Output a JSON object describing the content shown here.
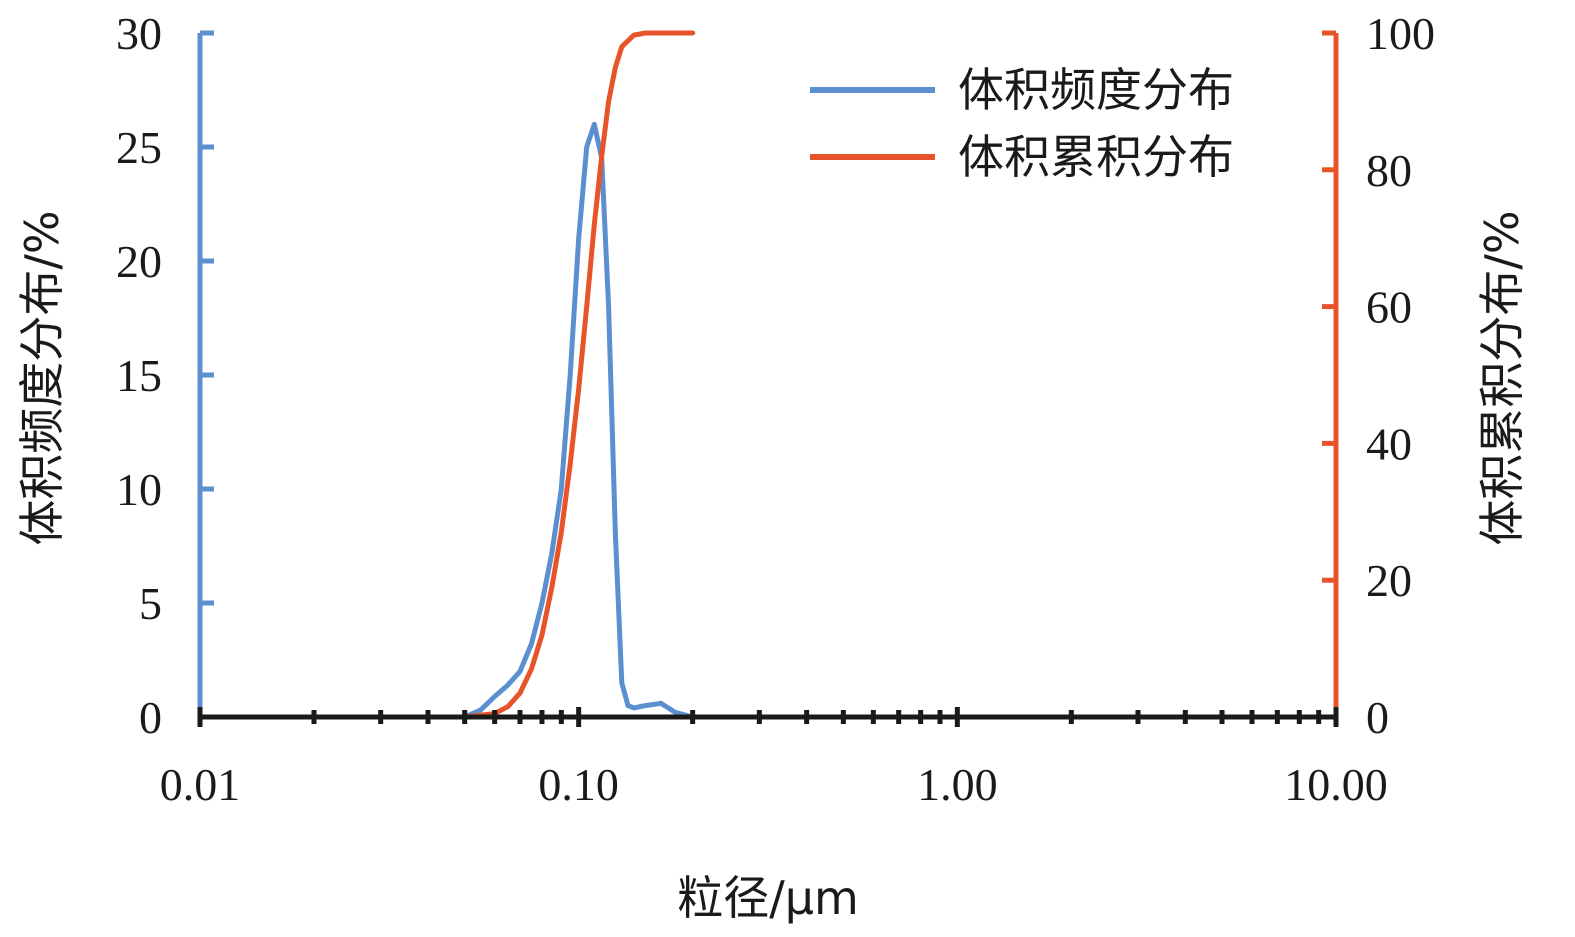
{
  "chart_data": {
    "type": "line",
    "x_scale": "log",
    "xlim": [
      0.01,
      10
    ],
    "xlabel": "粒径/μm",
    "x_ticks": [
      0.01,
      0.1,
      1,
      10
    ],
    "x_tick_labels": [
      "0.01",
      "0.10",
      "1.00",
      "10.00"
    ],
    "y_left": {
      "label": "体积频度分布/%",
      "lim": [
        0,
        30
      ],
      "ticks": [
        0,
        5,
        10,
        15,
        20,
        25,
        30
      ],
      "tick_labels": [
        "0",
        "5",
        "10",
        "15",
        "20",
        "25",
        "30"
      ],
      "color": "#5b8fd0"
    },
    "y_right": {
      "label": "体积累积分布/%",
      "lim": [
        0,
        100
      ],
      "ticks": [
        0,
        20,
        40,
        60,
        80,
        100
      ],
      "tick_labels": [
        "0",
        "20",
        "40",
        "60",
        "80",
        "100"
      ],
      "color": "#e8542a"
    },
    "grid": false,
    "legend_position": "top-right",
    "series": [
      {
        "name": "体积频度分布",
        "axis": "left",
        "color": "#5b8fd0",
        "x": [
          0.01,
          0.02,
          0.04,
          0.05,
          0.055,
          0.06,
          0.065,
          0.07,
          0.075,
          0.08,
          0.085,
          0.09,
          0.095,
          0.1,
          0.105,
          0.11,
          0.115,
          0.12,
          0.125,
          0.13,
          0.135,
          0.14,
          0.15,
          0.165,
          0.18,
          0.2
        ],
        "values": [
          0,
          0,
          0,
          0,
          0.3,
          0.9,
          1.4,
          2.0,
          3.2,
          5.0,
          7.2,
          10.0,
          15.0,
          21.0,
          25.0,
          26.0,
          24.5,
          18.0,
          8.0,
          1.5,
          0.5,
          0.4,
          0.5,
          0.6,
          0.2,
          0
        ]
      },
      {
        "name": "体积累积分布",
        "axis": "right",
        "color": "#e8542a",
        "x": [
          0.01,
          0.03,
          0.05,
          0.06,
          0.065,
          0.07,
          0.075,
          0.08,
          0.085,
          0.09,
          0.095,
          0.1,
          0.105,
          0.11,
          0.115,
          0.12,
          0.125,
          0.13,
          0.14,
          0.15,
          0.2
        ],
        "values": [
          0,
          0,
          0,
          0.5,
          1.5,
          3.5,
          7.0,
          12.0,
          19.0,
          27.0,
          37.0,
          48.0,
          60.0,
          72.0,
          82.0,
          90.0,
          95.0,
          98.0,
          99.7,
          100,
          100
        ]
      }
    ]
  }
}
